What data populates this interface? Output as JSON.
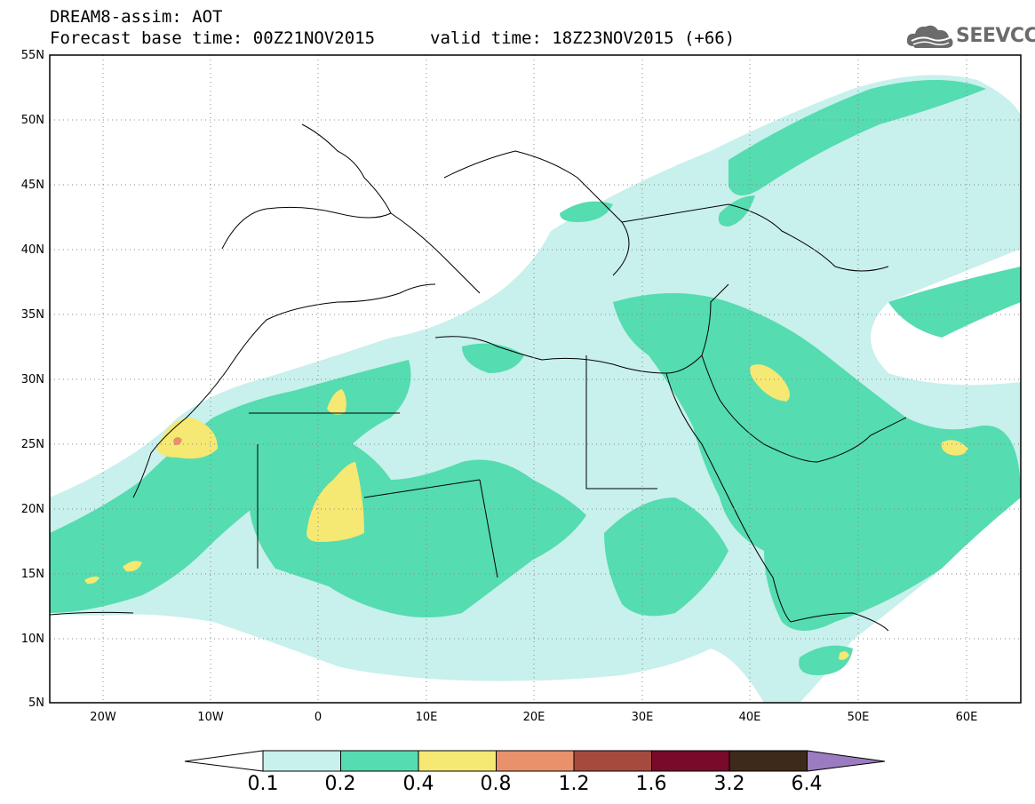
{
  "header": {
    "title": "DREAM8-assim: AOT",
    "base_time": "Forecast base time: 00Z21NOV2015",
    "valid_time": "valid time: 18Z23NOV2015 (+66)",
    "logo_text": "SEEVCCC"
  },
  "map": {
    "lat_labels": [
      "55N",
      "50N",
      "45N",
      "40N",
      "35N",
      "30N",
      "25N",
      "20N",
      "15N",
      "10N",
      "5N"
    ],
    "lon_labels": [
      "20W",
      "10W",
      "0",
      "10E",
      "20E",
      "30E",
      "40E",
      "50E",
      "60E"
    ],
    "lon_range": [
      -25,
      65
    ],
    "lat_range": [
      5,
      55
    ]
  },
  "colorbar": {
    "labels": [
      "0.1",
      "0.2",
      "0.4",
      "0.8",
      "1.2",
      "1.6",
      "3.2",
      "6.4"
    ],
    "colors": [
      "#ffffff",
      "#c8f0ec",
      "#55dcb0",
      "#f5e873",
      "#e8916a",
      "#a64a3e",
      "#7a0a2a",
      "#3d2a1a",
      "#9b7cc0"
    ]
  },
  "colors": {
    "aot_0_1": "#c8f0ec",
    "aot_0_2": "#55dcb0",
    "aot_0_4": "#f5e873",
    "aot_0_8": "#e8916a",
    "aot_1_2": "#a64a3e"
  }
}
